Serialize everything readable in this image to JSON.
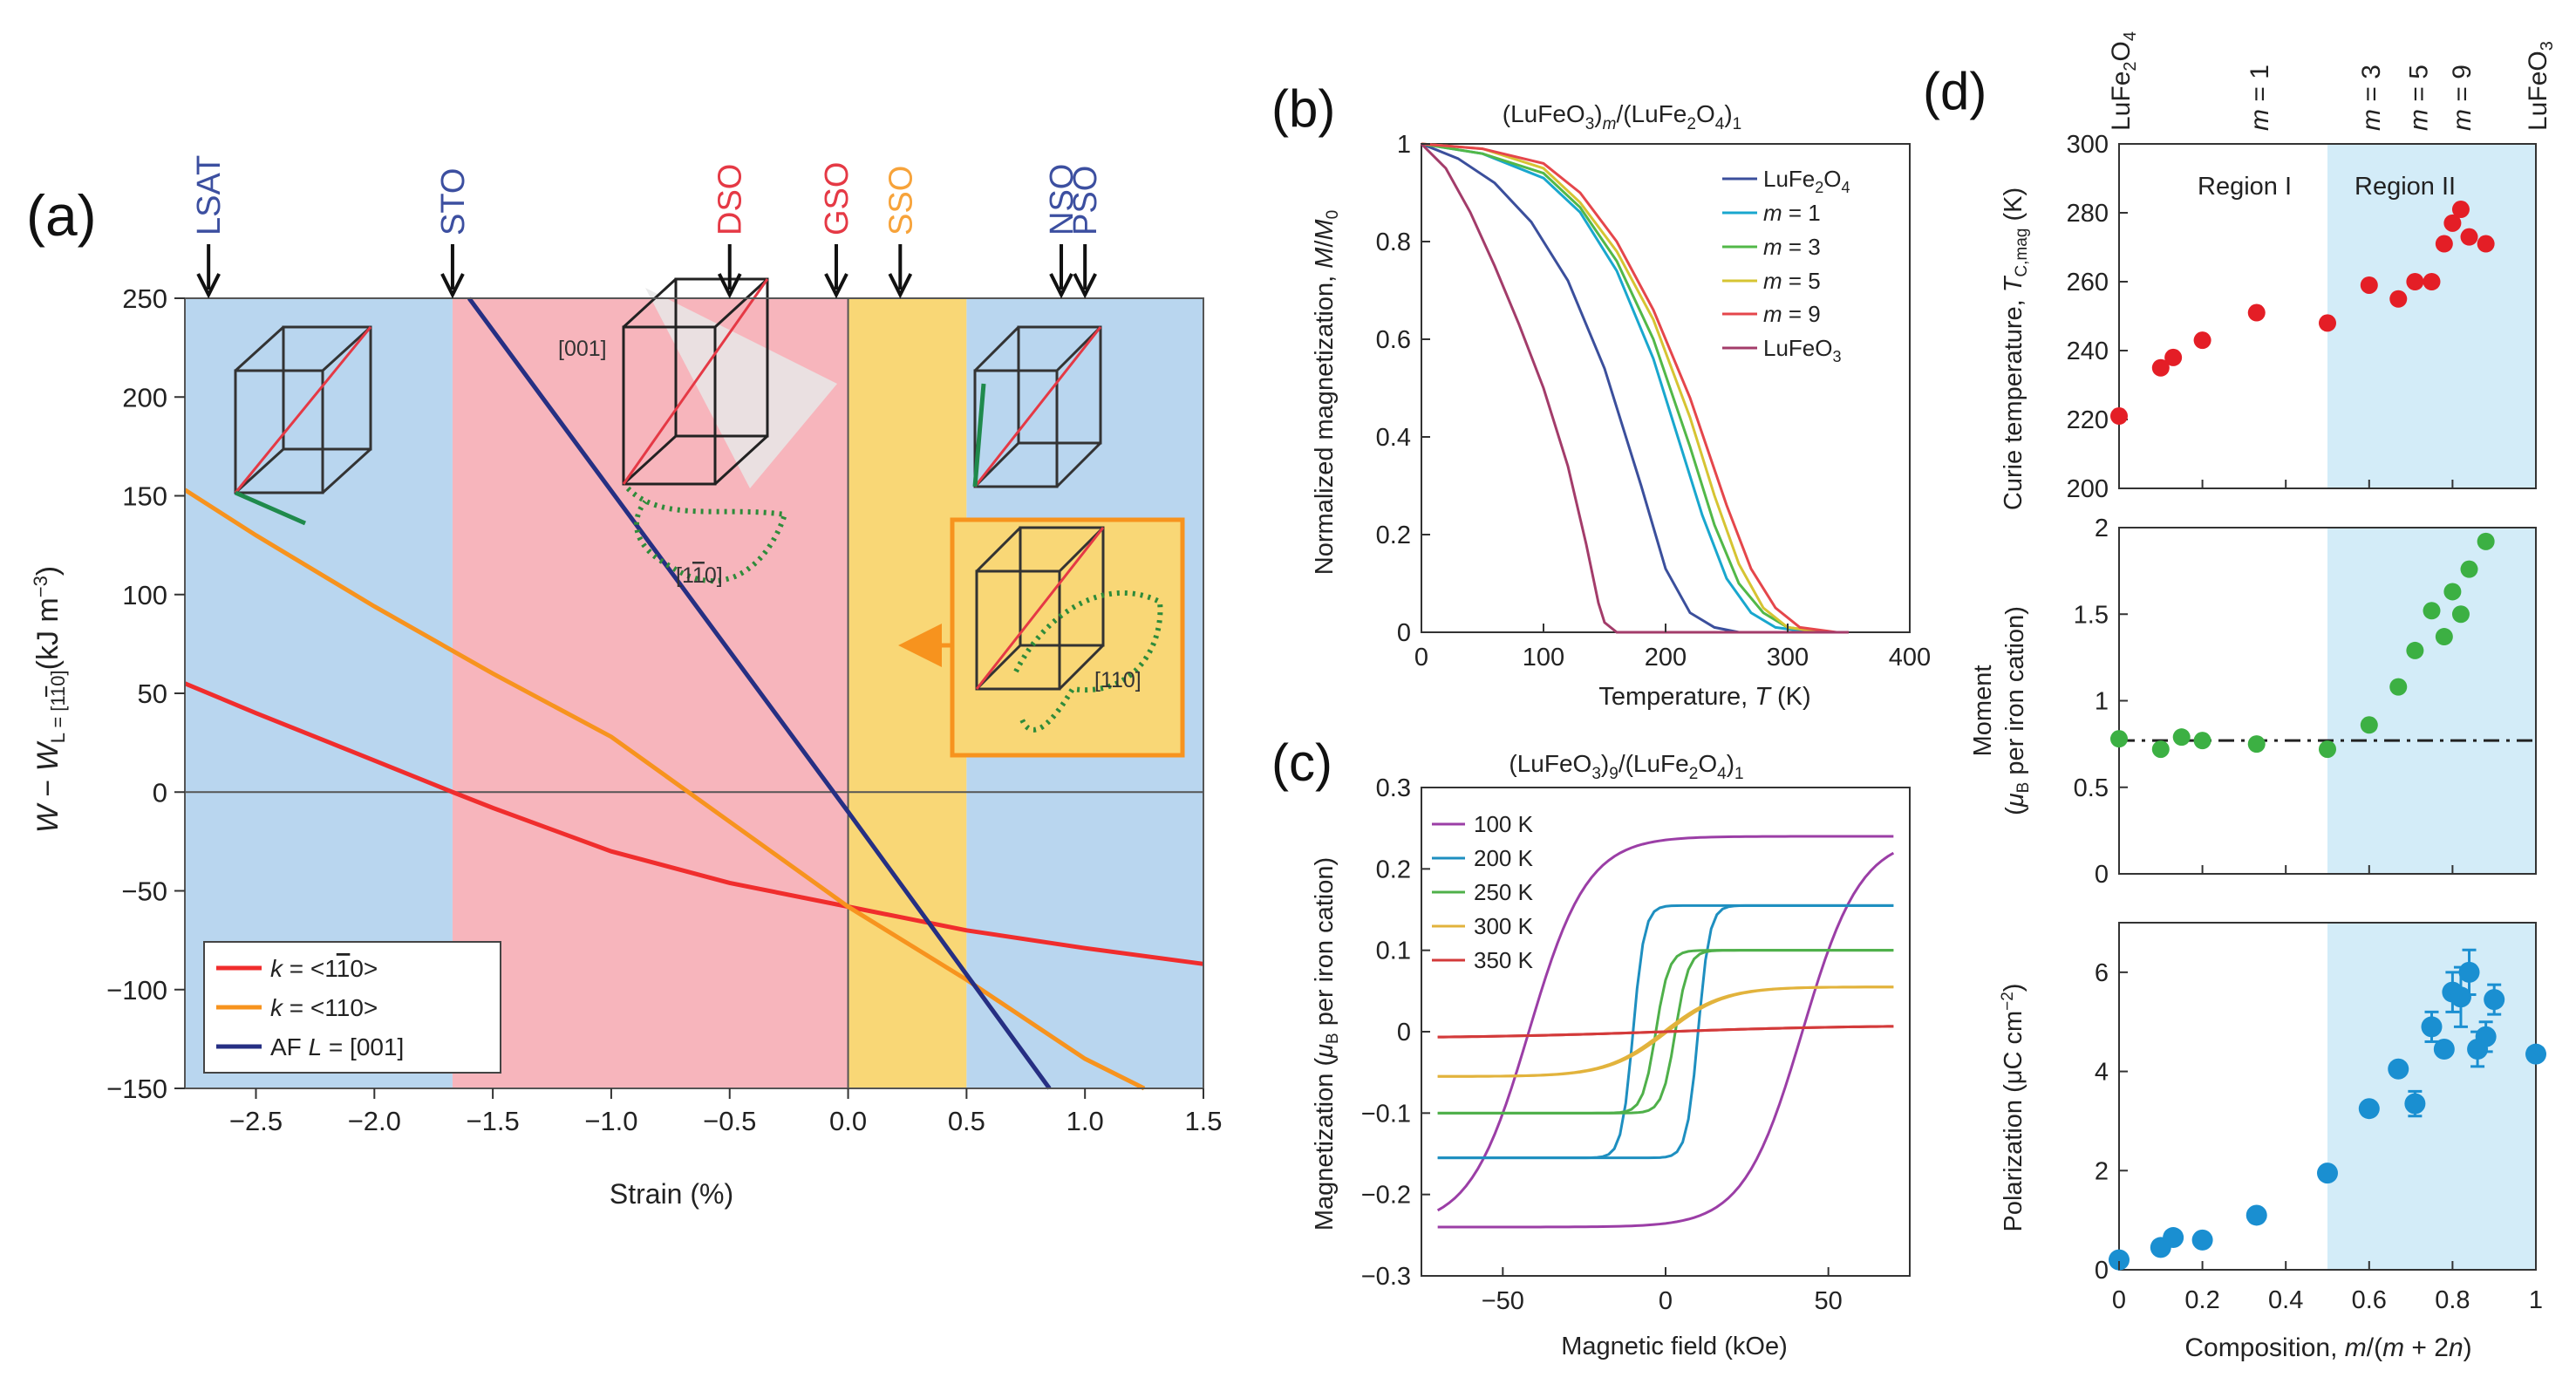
{
  "colors": {
    "blue_region": "#b9d6ef",
    "pink_region": "#f7b5bc",
    "yellow_region": "#f9d776",
    "light_blue_region": "#d3ecf8",
    "red": "#f02d2d",
    "orange": "#f7931e",
    "navy": "#262f83",
    "green": "#2ca34a",
    "point_red": "#e41e26",
    "point_green": "#3cb043",
    "point_blue": "#1a8fd1",
    "label_blue": "#3c4fa0",
    "label_red": "#e53945",
    "label_orange": "#f7a33a"
  },
  "chart_data": [
    {
      "panel": "(a)",
      "type": "line",
      "xlabel": "Strain (%)",
      "ylabel": "W − W_L=[1̄10] (kJ m⁻³)",
      "ylabel_parts": {
        "main": "W − W",
        "sub": "L = [1",
        "sub_bar": "1",
        "sub_end": "0]",
        "unit": "(kJ m",
        "unit_sup": "−3",
        "unit_end": ")"
      },
      "xlim": [
        -2.8,
        1.5
      ],
      "ylim": [
        -150,
        250
      ],
      "xticks": [
        -2.5,
        -2.0,
        -1.5,
        -1.0,
        -0.5,
        0.0,
        0.5,
        1.0,
        1.5
      ],
      "xtick_labels": [
        "−2.5",
        "−2.0",
        "−1.5",
        "−1.0",
        "−0.5",
        "0.0",
        "0.5",
        "1.0",
        "1.5"
      ],
      "yticks": [
        -150,
        -100,
        -50,
        0,
        50,
        100,
        150,
        200,
        250
      ],
      "ytick_labels": [
        "−150",
        "−100",
        "−50",
        "0",
        "50",
        "100",
        "150",
        "200",
        "250"
      ],
      "regions": [
        {
          "from": -2.8,
          "to": -1.67,
          "color": "blue_region"
        },
        {
          "from": -1.67,
          "to": 0.0,
          "color": "pink_region"
        },
        {
          "from": 0.0,
          "to": 0.5,
          "color": "yellow_region"
        },
        {
          "from": 0.5,
          "to": 1.5,
          "color": "blue_region"
        }
      ],
      "substrates": [
        {
          "name": "LSAT",
          "x": -2.7,
          "color": "label_blue"
        },
        {
          "name": "STO",
          "x": -1.67,
          "color": "label_blue"
        },
        {
          "name": "DSO",
          "x": -0.5,
          "color": "label_red"
        },
        {
          "name": "GSO",
          "x": -0.05,
          "color": "label_red"
        },
        {
          "name": "SSO",
          "x": 0.22,
          "color": "label_orange"
        },
        {
          "name": "NSO",
          "x": 0.9,
          "color": "label_blue"
        },
        {
          "name": "PSO",
          "x": 1.0,
          "color": "label_blue"
        }
      ],
      "series": [
        {
          "name": "k = <1̄10>",
          "legend_pre": "k",
          "legend_post": " = <1",
          "legend_bar": "1",
          "legend_end": "0>",
          "color": "red",
          "x": [
            -2.8,
            -2.5,
            -2.0,
            -1.67,
            -1.5,
            -1.0,
            -0.5,
            0.0,
            0.5,
            1.0,
            1.5
          ],
          "values": [
            55,
            40,
            16,
            0,
            -8,
            -30,
            -46,
            -58,
            -70,
            -79,
            -87
          ]
        },
        {
          "name": "k = <110>",
          "legend_pre": "k",
          "legend_post": " = <110>",
          "color": "orange",
          "x": [
            -2.8,
            -2.5,
            -2.0,
            -1.5,
            -1.0,
            -0.5,
            0.0,
            0.5,
            1.0,
            1.25
          ],
          "values": [
            153,
            130,
            94,
            60,
            28,
            -15,
            -58,
            -95,
            -135,
            -150
          ]
        },
        {
          "name": "AF L = [001]",
          "legend_pre": "AF ",
          "legend_italic": "L",
          "legend_post": " = [001]",
          "color": "navy",
          "x": [
            -1.6,
            0.0,
            0.85
          ],
          "values": [
            250,
            -10,
            -150
          ]
        }
      ],
      "annotations": [
        "[001]",
        "[1̄10]",
        "[110]"
      ],
      "annotation_parts": {
        "a001": "[001]",
        "a110": "[110]",
        "a1b10_pre": "[1",
        "a1b10_bar": "1",
        "a1b10_end": "0]"
      }
    },
    {
      "panel": "(b)",
      "type": "line",
      "title": "(LuFeO3)m/(LuFe2O4)1",
      "xlabel": "Temperature, T (K)",
      "ylabel": "Normalized magnetization, M/M0",
      "xlim": [
        0,
        400
      ],
      "ylim": [
        0,
        1
      ],
      "xticks": [
        0,
        100,
        200,
        300,
        400
      ],
      "xtick_labels": [
        "0",
        "100",
        "200",
        "300",
        "400"
      ],
      "yticks": [
        0,
        0.2,
        0.4,
        0.6,
        0.8,
        1
      ],
      "ytick_labels": [
        "0",
        "0.2",
        "0.4",
        "0.6",
        "0.8",
        "1"
      ],
      "legend": [
        "LuFe2O4",
        "m = 1",
        "m = 3",
        "m = 5",
        "m = 9",
        "LuFeO3"
      ],
      "series": [
        {
          "name": "LuFe2O4",
          "color": "#3b4f9c",
          "x": [
            0,
            30,
            60,
            90,
            120,
            150,
            180,
            200,
            220,
            240,
            260,
            300
          ],
          "values": [
            1,
            0.97,
            0.92,
            0.84,
            0.72,
            0.54,
            0.3,
            0.13,
            0.04,
            0.01,
            0.0,
            0.0
          ]
        },
        {
          "name": "m = 1",
          "color": "#19a7ce",
          "x": [
            0,
            50,
            100,
            130,
            160,
            190,
            210,
            230,
            250,
            270,
            290,
            320
          ],
          "values": [
            1,
            0.98,
            0.93,
            0.86,
            0.74,
            0.56,
            0.4,
            0.24,
            0.11,
            0.04,
            0.01,
            0.0
          ]
        },
        {
          "name": "m = 3",
          "color": "#52b848",
          "x": [
            0,
            50,
            100,
            130,
            160,
            190,
            220,
            240,
            260,
            280,
            300,
            330
          ],
          "values": [
            1,
            0.98,
            0.94,
            0.87,
            0.76,
            0.6,
            0.38,
            0.22,
            0.1,
            0.04,
            0.01,
            0.0
          ]
        },
        {
          "name": "m = 5",
          "color": "#d6c432",
          "x": [
            0,
            50,
            100,
            130,
            160,
            190,
            220,
            240,
            260,
            280,
            300,
            330
          ],
          "values": [
            1,
            0.99,
            0.95,
            0.88,
            0.78,
            0.64,
            0.44,
            0.28,
            0.14,
            0.05,
            0.01,
            0.0
          ]
        },
        {
          "name": "m = 9",
          "color": "#e5464b",
          "x": [
            0,
            50,
            100,
            130,
            160,
            190,
            220,
            250,
            270,
            290,
            310,
            340
          ],
          "values": [
            1,
            0.99,
            0.96,
            0.9,
            0.8,
            0.66,
            0.48,
            0.26,
            0.13,
            0.05,
            0.01,
            0.0
          ]
        },
        {
          "name": "LuFeO3",
          "color": "#a33c6a",
          "x": [
            0,
            20,
            40,
            60,
            80,
            100,
            120,
            135,
            145,
            150,
            160,
            200,
            350
          ],
          "values": [
            1,
            0.95,
            0.86,
            0.75,
            0.63,
            0.5,
            0.34,
            0.18,
            0.06,
            0.02,
            0.0,
            0.0,
            0.0
          ]
        }
      ]
    },
    {
      "panel": "(c)",
      "type": "line",
      "title": "(LuFeO3)9/(LuFe2O4)1",
      "xlabel": "Magnetic field (kOe)",
      "ylabel": "Magnetization (μB per iron cation)",
      "xlim": [
        -75,
        75
      ],
      "ylim": [
        -0.3,
        0.3
      ],
      "xticks": [
        -50,
        0,
        50
      ],
      "xtick_labels": [
        "−50",
        "0",
        "50"
      ],
      "yticks": [
        -0.3,
        -0.2,
        -0.1,
        0,
        0.1,
        0.2,
        0.3
      ],
      "ytick_labels": [
        "−0.3",
        "−0.2",
        "−0.1",
        "0",
        "0.1",
        "0.2",
        "0.3"
      ],
      "legend": [
        "100 K",
        "200 K",
        "250 K",
        "300 K",
        "350 K"
      ],
      "series": [
        {
          "name": "100 K",
          "color": "#9b3ea6",
          "saturation": 0.24,
          "coercive_kOe": 42,
          "width_kOe": 18
        },
        {
          "name": "200 K",
          "color": "#1e8fc0",
          "saturation": 0.155,
          "coercive_kOe": 10,
          "width_kOe": 3.5
        },
        {
          "name": "250 K",
          "color": "#4fb04a",
          "saturation": 0.1,
          "coercive_kOe": 3,
          "width_kOe": 4
        },
        {
          "name": "300 K",
          "color": "#e2b33c",
          "saturation": 0.055,
          "coercive_kOe": 0.5,
          "width_kOe": 18
        },
        {
          "name": "350 K",
          "color": "#d33a3a",
          "saturation": 0.008,
          "coercive_kOe": 0,
          "width_kOe": 60
        }
      ]
    },
    {
      "panel": "(d)",
      "type": "scatter",
      "xlabel": "Composition, m/(m + 2n)",
      "xlim": [
        0,
        1
      ],
      "xticks": [
        0,
        0.2,
        0.4,
        0.6,
        0.8,
        1
      ],
      "xtick_labels": [
        "0",
        "0.2",
        "0.4",
        "0.6",
        "0.8",
        "1"
      ],
      "top_labels": [
        {
          "text": "LuFe2O4",
          "x": 0
        },
        {
          "text": "m = 1",
          "x": 0.333
        },
        {
          "text": "m = 3",
          "x": 0.6
        },
        {
          "text": "m = 5",
          "x": 0.714
        },
        {
          "text": "m = 9",
          "x": 0.818
        },
        {
          "text": "LuFeO3",
          "x": 1
        }
      ],
      "region_split": 0.5,
      "region_labels": [
        "Region I",
        "Region II"
      ],
      "subplots": [
        {
          "name": "Curie temperature",
          "ylabel": "Curie temperature, T_C,mag (K)",
          "ylim": [
            200,
            300
          ],
          "yticks": [
            200,
            220,
            240,
            260,
            280,
            300
          ],
          "ytick_labels": [
            "200",
            "220",
            "240",
            "260",
            "280",
            "300"
          ],
          "color": "point_red",
          "x": [
            0,
            0.1,
            0.13,
            0.2,
            0.33,
            0.5,
            0.6,
            0.67,
            0.71,
            0.75,
            0.78,
            0.8,
            0.82,
            0.84,
            0.88
          ],
          "values": [
            221,
            235,
            238,
            243,
            251,
            248,
            259,
            255,
            260,
            260,
            271,
            277,
            281,
            273,
            271
          ]
        },
        {
          "name": "Moment",
          "ylabel": "Moment (μB per iron cation)",
          "ylim": [
            0,
            2
          ],
          "yticks": [
            0,
            0.5,
            1,
            1.5,
            2
          ],
          "ytick_labels": [
            "0",
            "0.5",
            "1",
            "1.5",
            "2"
          ],
          "color": "point_green",
          "reference_line": 0.77,
          "x": [
            0,
            0.1,
            0.15,
            0.2,
            0.33,
            0.5,
            0.6,
            0.67,
            0.71,
            0.75,
            0.78,
            0.8,
            0.82,
            0.84,
            0.88
          ],
          "values": [
            0.78,
            0.72,
            0.79,
            0.77,
            0.75,
            0.72,
            0.86,
            1.08,
            1.29,
            1.52,
            1.37,
            1.63,
            1.5,
            1.76,
            1.92
          ]
        },
        {
          "name": "Polarization",
          "ylabel": "Polarization (μC cm−2)",
          "ylim": [
            0,
            7
          ],
          "yticks": [
            0,
            2,
            4,
            6
          ],
          "ytick_labels": [
            "0",
            "2",
            "4",
            "6"
          ],
          "color": "point_blue",
          "x": [
            0,
            0.1,
            0.13,
            0.2,
            0.33,
            0.5,
            0.6,
            0.67,
            0.71,
            0.75,
            0.78,
            0.8,
            0.82,
            0.84,
            0.86,
            0.88,
            0.9,
            1.0
          ],
          "values": [
            0.2,
            0.45,
            0.65,
            0.6,
            1.1,
            1.95,
            3.25,
            4.05,
            3.35,
            4.9,
            4.45,
            5.6,
            5.5,
            6.0,
            4.45,
            4.7,
            5.45,
            4.35
          ],
          "errors": [
            0,
            0,
            0,
            0,
            0,
            0,
            0,
            0,
            0.25,
            0.3,
            0,
            0.4,
            0.6,
            0.45,
            0.35,
            0.3,
            0.3,
            0
          ]
        }
      ]
    }
  ],
  "panel_labels": [
    "(a)",
    "(b)",
    "(c)",
    "(d)"
  ],
  "text": {
    "b_title_pre": "(LuFeO",
    "b_title_s1": "3",
    "b_title_mid": ")",
    "b_title_m": "m",
    "b_title_mid2": "/(LuFe",
    "b_title_s2": "2",
    "b_title_mid3": "O",
    "b_title_s3": "4",
    "b_title_end": ")",
    "b_title_end_sub": "1",
    "c_title_pre": "(LuFeO",
    "c_title_s1": "3",
    "c_title_mid": ")",
    "c_title_n": "9",
    "c_title_mid2": "/(LuFe",
    "c_title_s2": "2",
    "c_title_mid3": "O",
    "c_title_s3": "4",
    "c_title_end": ")",
    "c_title_end_sub": "1",
    "b_ylabel_pre": "Normalized magnetization, ",
    "b_ylabel_M": "M",
    "b_ylabel_slash": "/",
    "b_ylabel_M0": "M",
    "b_ylabel_0": "0",
    "b_xlabel_pre": "Temperature, ",
    "b_xlabel_T": "T",
    "b_xlabel_end": " (K)",
    "c_ylabel_pre": "Magnetization (",
    "c_ylabel_mu": "μ",
    "c_ylabel_B": "B",
    "c_ylabel_end": " per iron cation)",
    "d1_ylabel_pre": "Curie temperature, ",
    "d1_ylabel_T": "T",
    "d1_ylabel_sub": "C,mag",
    "d1_ylabel_end": " (K)",
    "d2_ylabel_l1": "Moment",
    "d2_ylabel_l2_pre": "(",
    "d2_ylabel_mu": "μ",
    "d2_ylabel_B": "B",
    "d2_ylabel_l2_end": " per iron cation)",
    "d3_ylabel_pre": "Polarization (μC cm",
    "d3_ylabel_sup": "−2",
    "d3_ylabel_end": ")",
    "d_xlabel_pre": "Composition, ",
    "d_xlabel_m": "m",
    "d_xlabel_mid": "/(",
    "d_xlabel_m2": "m",
    "d_xlabel_mid2": " + 2",
    "d_xlabel_n": "n",
    "d_xlabel_end": ")",
    "top_lufe2o4_pre": "LuFe",
    "top_lufe2o4_s1": "2",
    "top_lufe2o4_mid": "O",
    "top_lufe2o4_s2": "4",
    "top_lufeo3_pre": "LuFeO",
    "top_lufeo3_s": "3",
    "top_m_pre": "m",
    "top_m1": " = 1",
    "top_m3": " = 3",
    "top_m5": " = 5",
    "top_m9": " = 9",
    "leg_lufe2o4_pre": "LuFe",
    "leg_lufe2o4_s1": "2",
    "leg_lufe2o4_mid": "O",
    "leg_lufe2o4_s2": "4",
    "leg_m": "m",
    "leg_eq1": " = 1",
    "leg_eq3": " = 3",
    "leg_eq5": " = 5",
    "leg_eq9": " = 9",
    "leg_lufeo3_pre": "LuFeO",
    "leg_lufeo3_s": "3"
  }
}
